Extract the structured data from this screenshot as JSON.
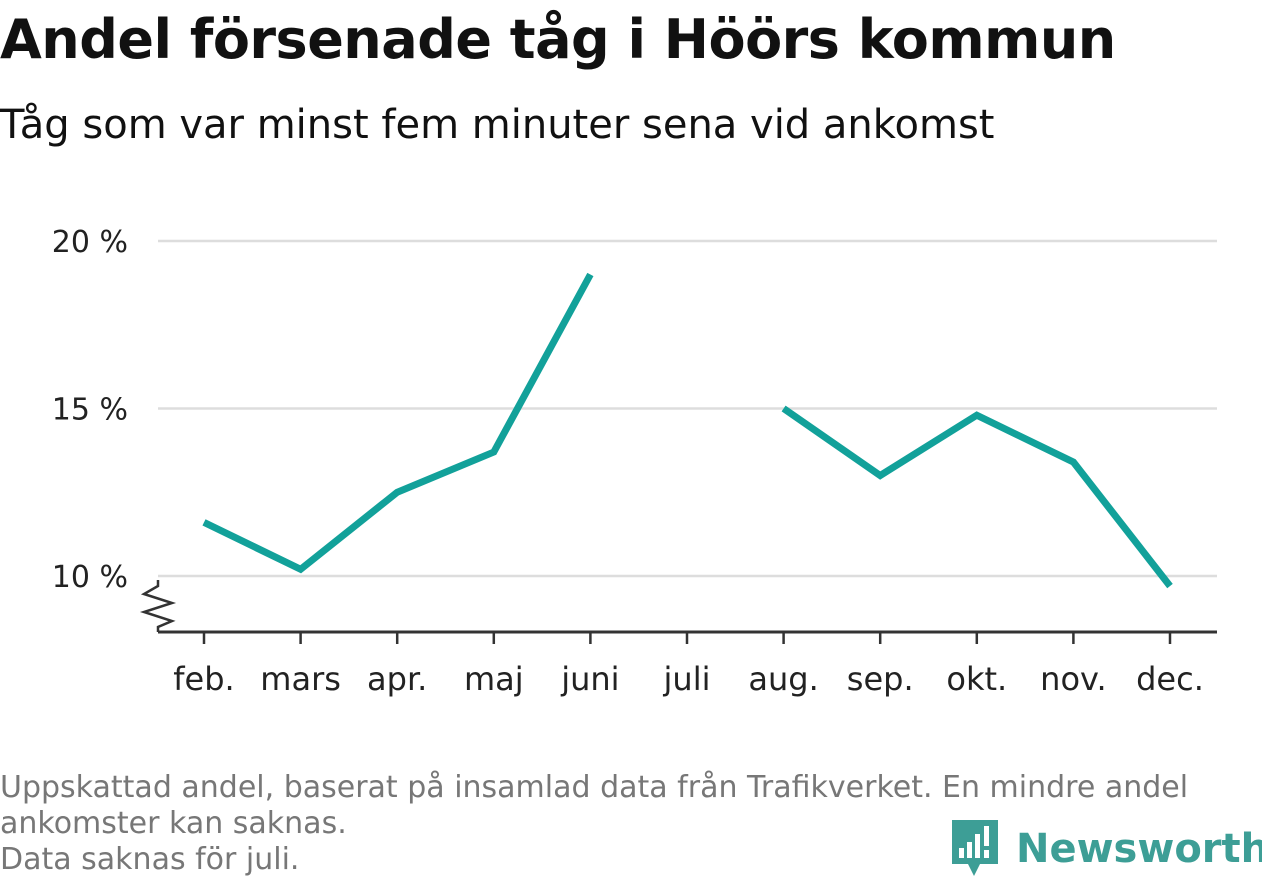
{
  "title": "Andel försenade tåg i Höörs kommun",
  "subtitle": "Tåg som var minst fem minuter sena vid ankomst",
  "notes": [
    "Uppskattad andel, baserat på insamlad data från Trafikverket. En mindre andel",
    "ankomster kan saknas.",
    "Data saknas för juli."
  ],
  "brand": "Newsworthy",
  "colors": {
    "line": "#12a19a",
    "grid": "#dddddd",
    "axis": "#333333",
    "brand": "#3d9e96"
  },
  "chart_data": {
    "type": "line",
    "categories": [
      "feb.",
      "mars",
      "apr.",
      "maj",
      "juni",
      "juli",
      "aug.",
      "sep.",
      "okt.",
      "nov.",
      "dec."
    ],
    "series": [
      {
        "values": [
          11.6,
          10.2,
          12.5,
          13.7,
          19.0,
          null,
          15.0,
          13.0,
          14.8,
          13.4,
          9.7
        ]
      }
    ],
    "y_ticks": [
      10,
      15,
      20
    ],
    "y_tick_labels": [
      "10 %",
      "15 %",
      "20 %"
    ],
    "ylim": [
      10,
      20
    ],
    "y_axis_break": true,
    "grid": true
  }
}
